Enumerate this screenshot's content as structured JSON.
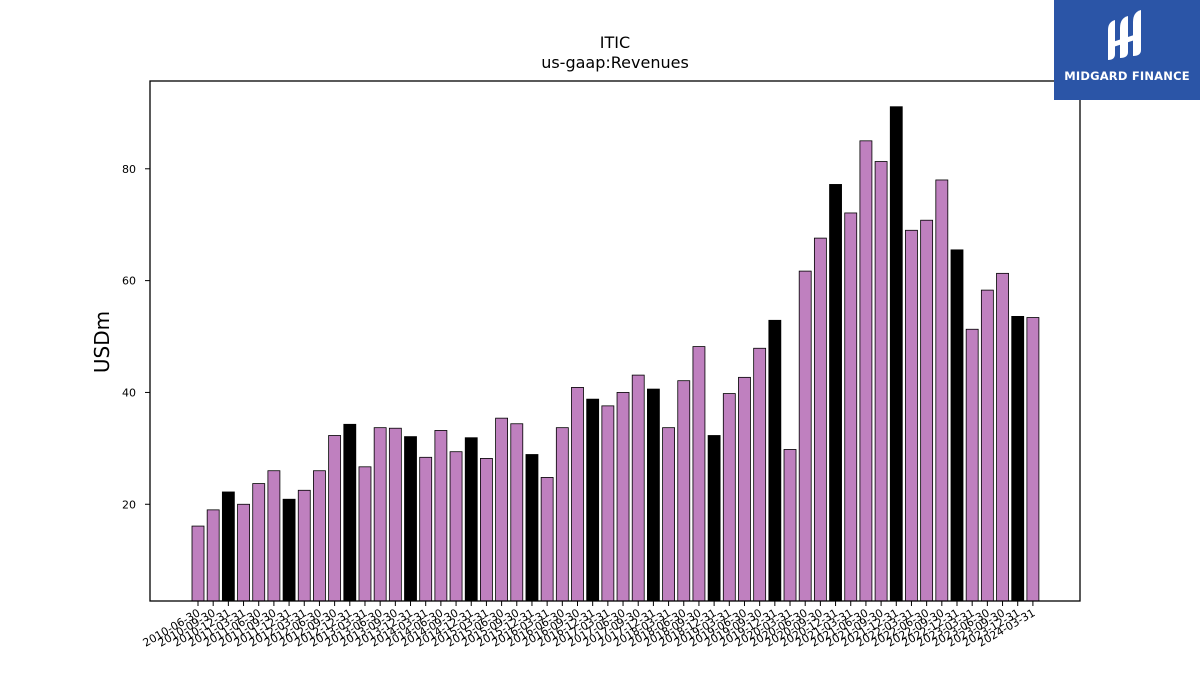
{
  "chart_data": {
    "type": "bar",
    "title": "ITIC",
    "subtitle": "us-gaap:Revenues",
    "xlabel": "",
    "ylabel": "USDm",
    "ylim": [
      2.7,
      95.7
    ],
    "yticks": [
      20,
      40,
      60,
      80
    ],
    "grid": false,
    "colors": {
      "regular": "#bf80bf",
      "fiscal_year_end": "#000000"
    },
    "categories": [
      "2010-06-30",
      "2010-09-30",
      "2010-12-31",
      "2011-03-31",
      "2011-06-30",
      "2011-09-30",
      "2011-12-31",
      "2012-03-31",
      "2012-06-30",
      "2012-09-30",
      "2012-12-31",
      "2013-03-31",
      "2013-06-30",
      "2013-09-30",
      "2013-12-31",
      "2014-03-31",
      "2014-06-30",
      "2014-09-30",
      "2014-12-31",
      "2015-03-31",
      "2015-06-30",
      "2015-09-30",
      "2015-12-31",
      "2016-03-31",
      "2016-06-30",
      "2016-09-30",
      "2016-12-31",
      "2017-03-31",
      "2017-06-30",
      "2017-09-30",
      "2017-12-31",
      "2018-03-31",
      "2018-06-30",
      "2018-09-30",
      "2018-12-31",
      "2019-03-31",
      "2019-06-30",
      "2019-09-30",
      "2019-12-31",
      "2020-03-31",
      "2020-06-30",
      "2020-09-30",
      "2020-12-31",
      "2021-03-31",
      "2021-06-30",
      "2021-09-30",
      "2021-12-31",
      "2022-03-31",
      "2022-06-30",
      "2022-09-30",
      "2022-12-31",
      "2023-03-31",
      "2023-06-30",
      "2023-09-30",
      "2023-12-31",
      "2024-03-31"
    ],
    "values": [
      16.1,
      19.0,
      22.2,
      20.0,
      23.7,
      26.0,
      20.9,
      22.5,
      26.0,
      32.3,
      34.3,
      26.7,
      33.7,
      33.6,
      32.1,
      28.4,
      33.2,
      29.4,
      31.9,
      28.2,
      35.4,
      34.4,
      28.9,
      24.8,
      33.7,
      40.9,
      38.8,
      37.6,
      40.0,
      43.1,
      40.6,
      33.7,
      42.1,
      48.2,
      32.3,
      39.8,
      42.7,
      47.9,
      52.9,
      29.8,
      61.7,
      67.6,
      77.2,
      72.1,
      85.0,
      81.3,
      91.1,
      69.0,
      70.8,
      78.0,
      65.5,
      51.3,
      58.3,
      61.3,
      53.6,
      53.4
    ],
    "highlight": [
      false,
      false,
      true,
      false,
      false,
      false,
      true,
      false,
      false,
      false,
      true,
      false,
      false,
      false,
      true,
      false,
      false,
      false,
      true,
      false,
      false,
      false,
      true,
      false,
      false,
      false,
      true,
      false,
      false,
      false,
      true,
      false,
      false,
      false,
      true,
      false,
      false,
      false,
      true,
      false,
      false,
      false,
      true,
      false,
      false,
      false,
      true,
      false,
      false,
      false,
      true,
      false,
      false,
      false,
      true,
      false
    ]
  },
  "logo": {
    "text": "MIDGARD FINANCE",
    "color": "#2b55a7"
  }
}
